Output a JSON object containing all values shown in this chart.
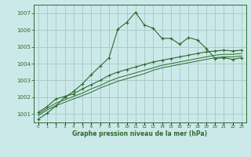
{
  "xlabel": "Graphe pression niveau de la mer (hPa)",
  "bg_color": "#cce9e9",
  "grid_color": "#aacccc",
  "line_color": "#2d6a2d",
  "ylim": [
    1000.5,
    1007.5
  ],
  "xlim": [
    -0.5,
    23.5
  ],
  "yticks": [
    1001,
    1002,
    1003,
    1004,
    1005,
    1006,
    1007
  ],
  "xticks": [
    0,
    1,
    2,
    3,
    4,
    5,
    6,
    7,
    8,
    9,
    10,
    11,
    12,
    13,
    14,
    15,
    16,
    17,
    18,
    19,
    20,
    21,
    22,
    23
  ],
  "series1": [
    1000.7,
    1001.05,
    1001.5,
    1002.0,
    1002.35,
    1002.8,
    1003.35,
    1003.85,
    1004.35,
    1006.05,
    1006.45,
    1007.05,
    1006.3,
    1006.1,
    1005.5,
    1005.5,
    1005.15,
    1005.55,
    1005.4,
    1004.9,
    1004.3,
    1004.35,
    1004.25,
    1004.35
  ],
  "series2": [
    1001.1,
    1001.45,
    1001.9,
    1002.05,
    1002.2,
    1002.5,
    1002.75,
    1003.0,
    1003.3,
    1003.5,
    1003.65,
    1003.8,
    1003.95,
    1004.1,
    1004.2,
    1004.3,
    1004.4,
    1004.5,
    1004.6,
    1004.7,
    1004.75,
    1004.8,
    1004.75,
    1004.8
  ],
  "series3": [
    1001.0,
    1001.35,
    1001.65,
    1001.85,
    1002.05,
    1002.25,
    1002.5,
    1002.7,
    1002.95,
    1003.15,
    1003.3,
    1003.45,
    1003.6,
    1003.75,
    1003.9,
    1004.0,
    1004.1,
    1004.2,
    1004.3,
    1004.4,
    1004.5,
    1004.55,
    1004.55,
    1004.6
  ],
  "series4": [
    1000.9,
    1001.25,
    1001.5,
    1001.7,
    1001.9,
    1002.1,
    1002.3,
    1002.55,
    1002.75,
    1002.95,
    1003.1,
    1003.25,
    1003.4,
    1003.6,
    1003.75,
    1003.85,
    1003.95,
    1004.05,
    1004.15,
    1004.25,
    1004.35,
    1004.4,
    1004.4,
    1004.45
  ]
}
